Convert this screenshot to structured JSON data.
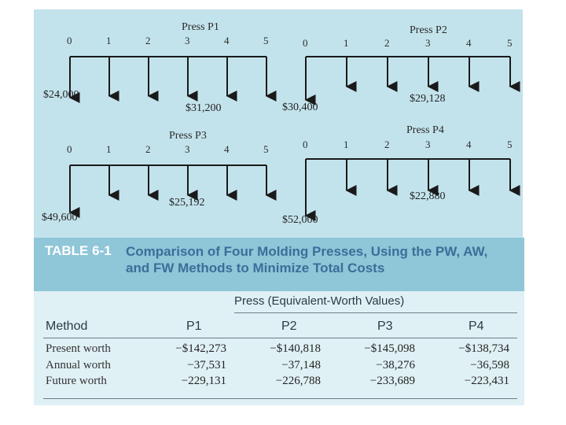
{
  "diagram": {
    "presses": [
      {
        "title": "Press P1",
        "ticks": [
          "0",
          "1",
          "2",
          "3",
          "4",
          "5"
        ],
        "initial_cost": "$24,000",
        "annual_cost": "$31,200"
      },
      {
        "title": "Press P2",
        "ticks": [
          "0",
          "1",
          "2",
          "3",
          "4",
          "5"
        ],
        "initial_cost": "$30,400",
        "annual_cost": "$29,128"
      },
      {
        "title": "Press P3",
        "ticks": [
          "0",
          "1",
          "2",
          "3",
          "4",
          "5"
        ],
        "initial_cost": "$49,600",
        "annual_cost": "$25,192"
      },
      {
        "title": "Press P4",
        "ticks": [
          "0",
          "1",
          "2",
          "3",
          "4",
          "5"
        ],
        "initial_cost": "$52,000",
        "annual_cost": "$22,880"
      }
    ]
  },
  "table": {
    "id": "TABLE 6-1",
    "title_line1": "Comparison of Four Molding Presses, Using the PW, AW,",
    "title_line2": "and FW Methods to Minimize Total Costs",
    "group_header": "Press (Equivalent-Worth Values)",
    "method_header": "Method",
    "columns": [
      "P1",
      "P2",
      "P3",
      "P4"
    ],
    "rows": [
      {
        "label": "Present worth",
        "values": [
          "−$142,273",
          "−$140,818",
          "−$145,098",
          "−$138,734"
        ]
      },
      {
        "label": "Annual worth",
        "values": [
          "−37,531",
          "−37,148",
          "−38,276",
          "−36,598"
        ]
      },
      {
        "label": "Future worth",
        "values": [
          "−229,131",
          "−226,788",
          "−233,689",
          "−223,431"
        ]
      }
    ]
  },
  "colors": {
    "panel": "#c3e3ec",
    "header_band": "#8fc6d8",
    "title_text": "#3a6f99",
    "table_body": "#e0f1f6"
  }
}
